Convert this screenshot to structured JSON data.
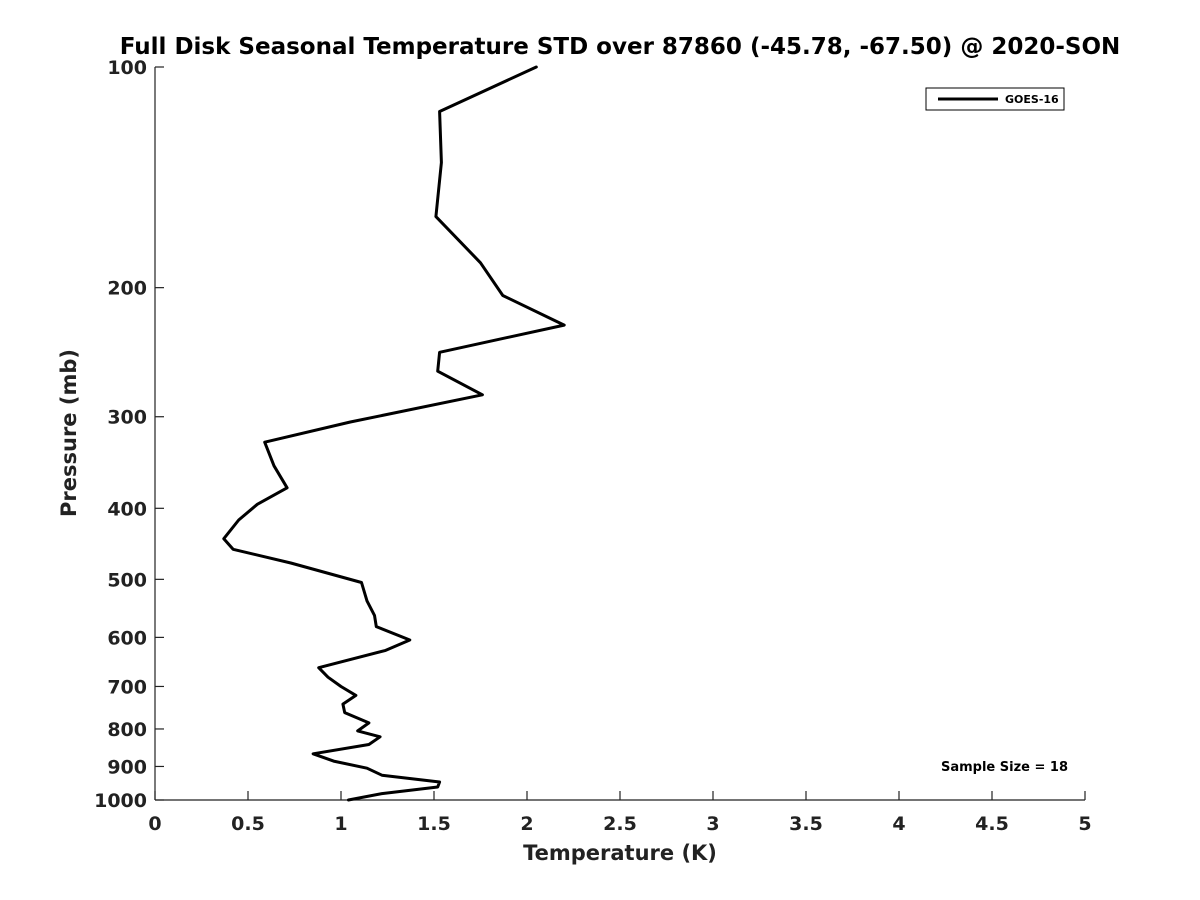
{
  "chart_data": {
    "type": "line",
    "title": "Full Disk Seasonal Temperature STD over 87860 (-45.78, -67.50) @ 2020-SON",
    "xlabel": "Temperature (K)",
    "ylabel": "Pressure (mb)",
    "xlim": [
      0,
      5
    ],
    "ylim": [
      100,
      1000
    ],
    "y_scale": "log",
    "y_inverted": true,
    "x_ticks": [
      0,
      0.5,
      1,
      1.5,
      2,
      2.5,
      3,
      3.5,
      4,
      4.5,
      5
    ],
    "x_tick_labels": [
      "0",
      "0.5",
      "1",
      "1.5",
      "2",
      "2.5",
      "3",
      "3.5",
      "4",
      "4.5",
      "5"
    ],
    "y_ticks": [
      100,
      200,
      300,
      400,
      500,
      600,
      700,
      800,
      900,
      1000
    ],
    "y_tick_labels": [
      "100",
      "200",
      "300",
      "400",
      "500",
      "600",
      "700",
      "800",
      "900",
      "1000"
    ],
    "grid": false,
    "legend": {
      "position": "top-right",
      "entries": [
        "GOES-16"
      ]
    },
    "annotation": "Sample Size = 18",
    "series": [
      {
        "name": "GOES-16",
        "color": "#000000",
        "x": [
          2.05,
          1.53,
          1.54,
          1.51,
          1.75,
          1.87,
          2.2,
          1.53,
          1.52,
          1.76,
          1.05,
          0.59,
          0.64,
          0.71,
          0.55,
          0.45,
          0.37,
          0.42,
          0.73,
          1.11,
          1.14,
          1.18,
          1.19,
          1.37,
          1.24,
          0.88,
          0.93,
          1.0,
          1.08,
          1.01,
          1.02,
          1.15,
          1.09,
          1.21,
          1.15,
          0.85,
          0.96,
          1.14,
          1.22,
          1.53,
          1.52,
          1.22,
          1.04
        ],
        "y": [
          100,
          115,
          135,
          160,
          185,
          205,
          225,
          245,
          260,
          280,
          305,
          325,
          350,
          375,
          395,
          415,
          440,
          455,
          475,
          505,
          535,
          560,
          580,
          605,
          625,
          660,
          680,
          700,
          720,
          740,
          760,
          785,
          805,
          820,
          840,
          865,
          885,
          905,
          925,
          945,
          960,
          980,
          1000
        ]
      }
    ]
  }
}
